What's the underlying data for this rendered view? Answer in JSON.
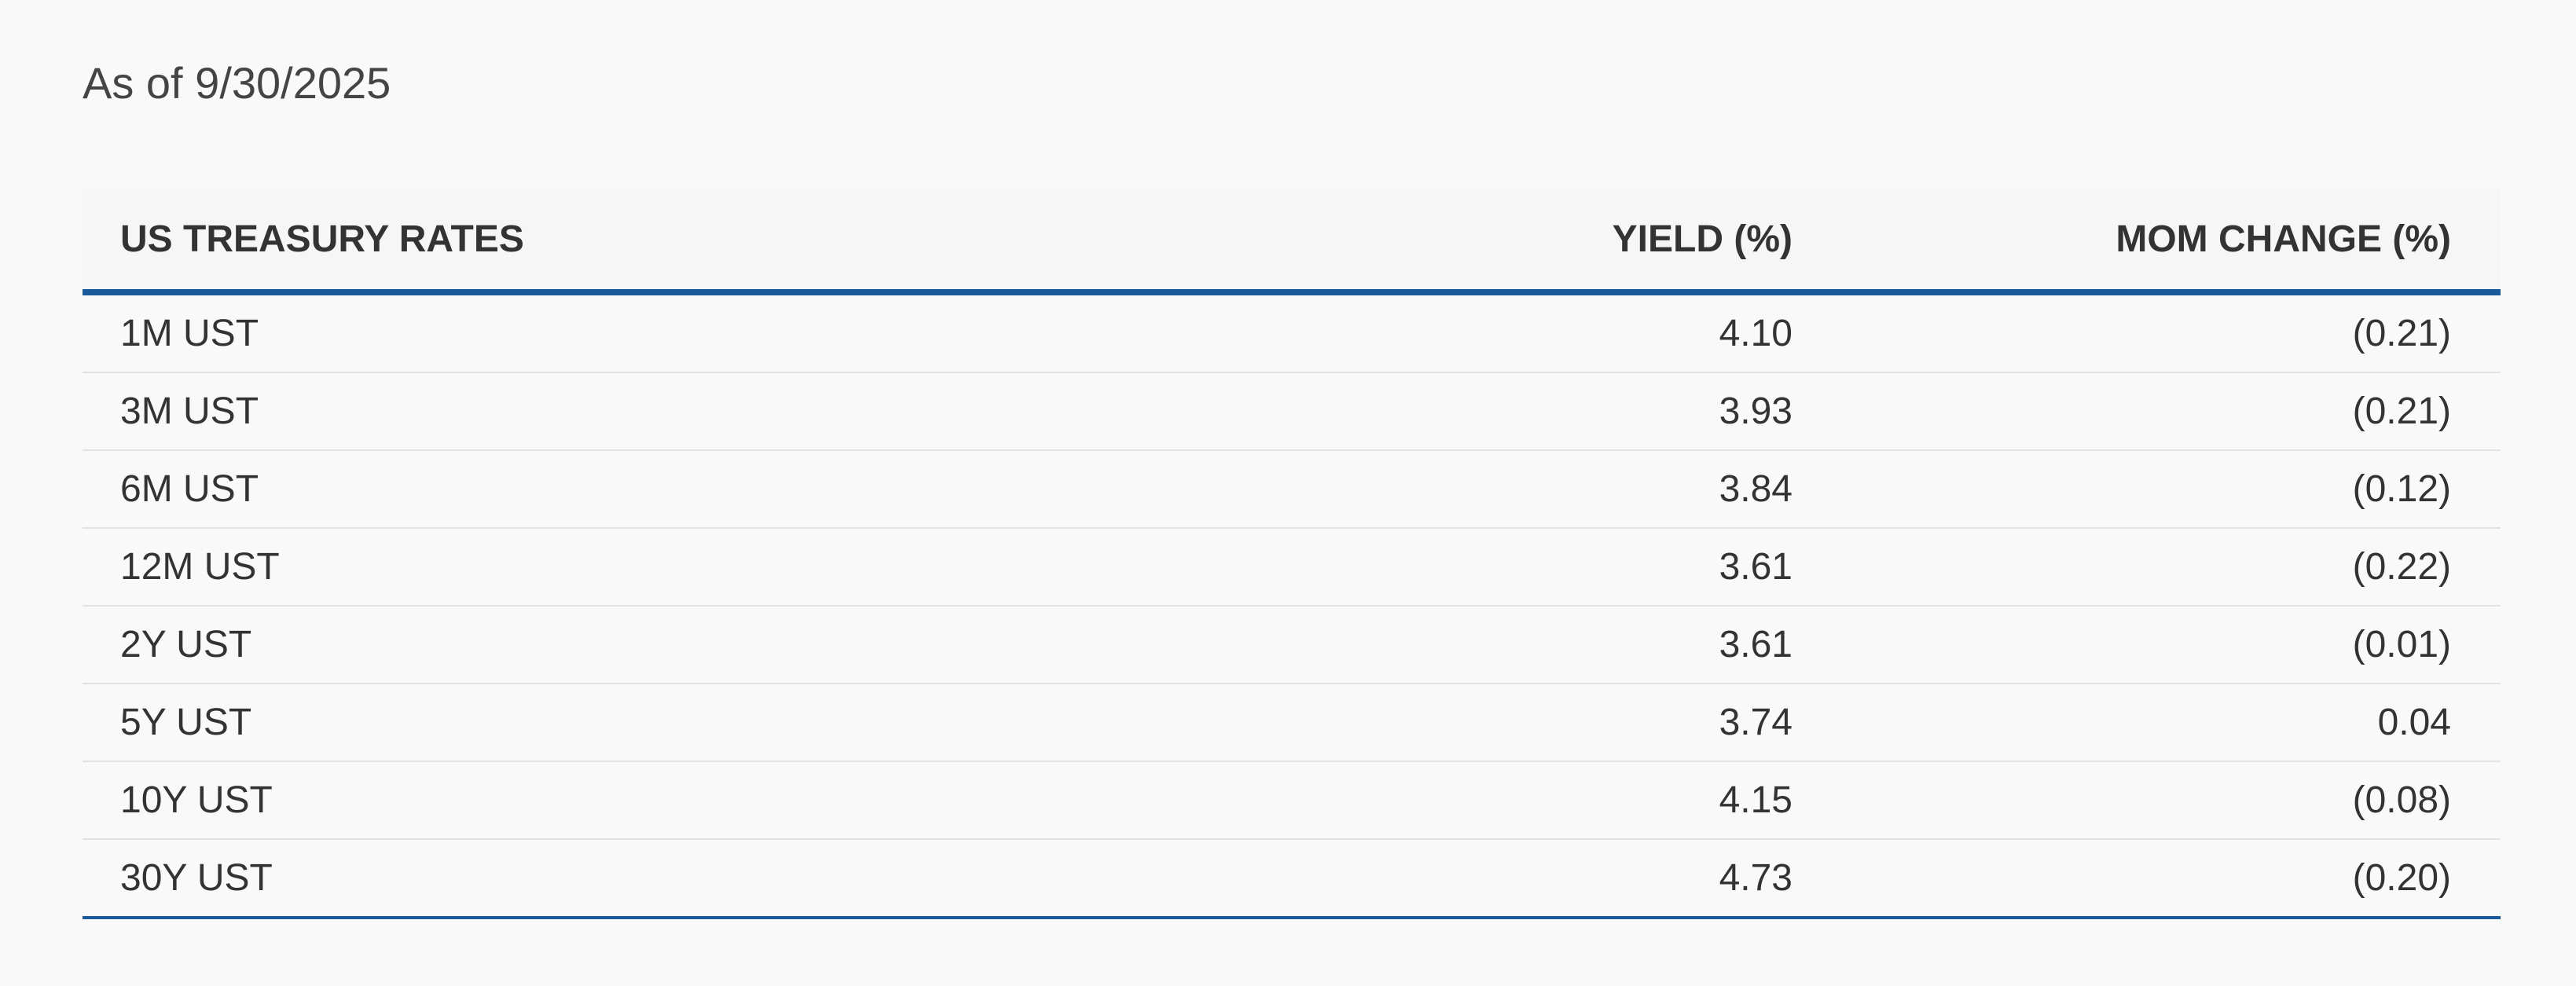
{
  "header": {
    "as_of": "As of 9/30/2025"
  },
  "table": {
    "columns": [
      "US TREASURY RATES",
      "YIELD (%)",
      "MOM CHANGE (%)"
    ],
    "rows": [
      [
        "1M UST",
        "4.10",
        "(0.21)"
      ],
      [
        "3M UST",
        "3.93",
        "(0.21)"
      ],
      [
        "6M UST",
        "3.84",
        "(0.12)"
      ],
      [
        "12M UST",
        "3.61",
        "(0.22)"
      ],
      [
        "2Y UST",
        "3.61",
        "(0.01)"
      ],
      [
        "5Y UST",
        "3.74",
        "0.04"
      ],
      [
        "10Y UST",
        "4.15",
        "(0.08)"
      ],
      [
        "30Y UST",
        "4.73",
        "(0.20)"
      ]
    ]
  }
}
